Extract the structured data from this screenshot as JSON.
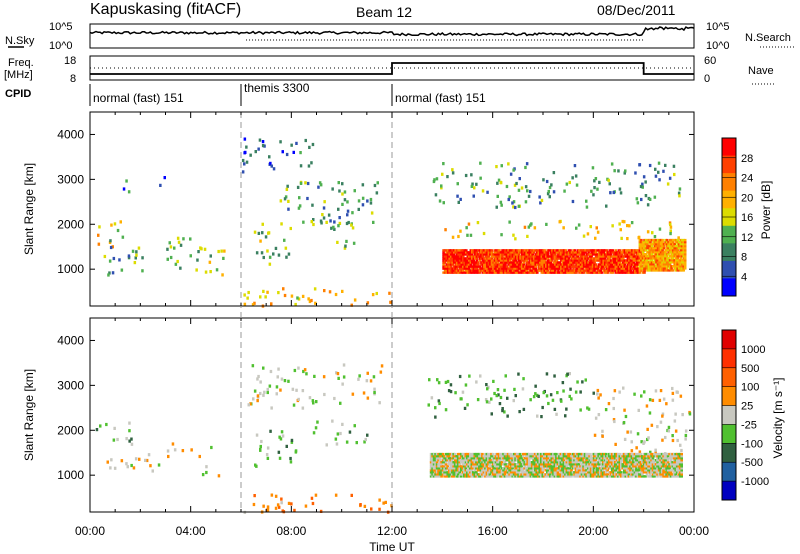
{
  "header": {
    "station": "Kapuskasing (fitACF)",
    "beam": "Beam 12",
    "date": "08/Dec/2011"
  },
  "noise_panel": {
    "left_label": "N.Sky",
    "right_label": "N.Search",
    "left_ticks": [
      "10^5",
      "10^0"
    ],
    "right_ticks": [
      "10^5",
      "10^0"
    ]
  },
  "freq_panel": {
    "left_label_1": "Freq.",
    "left_label_2": "[MHz]",
    "left_ticks": [
      "18",
      "8"
    ],
    "right_label": "Nave",
    "right_ticks": [
      "60",
      "0"
    ]
  },
  "cpid": {
    "label": "CPID",
    "segments": [
      {
        "name": "normal (fast) 151",
        "start_h": 0,
        "end_h": 6
      },
      {
        "name": "themis 3300",
        "start_h": 6,
        "end_h": 12
      },
      {
        "name": "normal (fast) 151",
        "start_h": 12,
        "end_h": 24
      }
    ]
  },
  "power_panel": {
    "ylabel": "Slant Range [km]",
    "yticks": [
      "4000",
      "3000",
      "2000",
      "1000"
    ],
    "colorbar_label": "Power [dB]",
    "colorbar_ticks": [
      "28",
      "24",
      "20",
      "16",
      "12",
      "8",
      "4"
    ],
    "colors": [
      "#0000ff",
      "#2f4fb0",
      "#3a8060",
      "#4fb050",
      "#dcdc00",
      "#ffb000",
      "#ff8000",
      "#ff4000",
      "#ff0000"
    ]
  },
  "velocity_panel": {
    "ylabel": "Slant Range [km]",
    "yticks": [
      "4000",
      "3000",
      "2000",
      "1000"
    ],
    "colorbar_label": "Velocity [m s⁻¹]",
    "colorbar_ticks": [
      "1000",
      "500",
      "100",
      "25",
      "-25",
      "-100",
      "-500",
      "-1000"
    ],
    "colors": [
      "#0000c0",
      "#2060a0",
      "#306040",
      "#50c030",
      "#c8c8c0",
      "#ff8c00",
      "#ff6000",
      "#ff3000",
      "#e00000"
    ]
  },
  "x_axis": {
    "ticks": [
      "00:00",
      "04:00",
      "08:00",
      "12:00",
      "16:00",
      "20:00",
      "00:00"
    ],
    "label": "Time UT"
  },
  "chart_data": [
    {
      "type": "heatmap",
      "title": "Power",
      "xlabel": "Time UT",
      "ylabel": "Slant Range [km]",
      "xlim": [
        0,
        24
      ],
      "ylim": [
        180,
        4500
      ],
      "color_range": [
        0,
        30
      ],
      "scatter_regions": [
        {
          "t": [
            0.1,
            1.8
          ],
          "r": [
            1500,
            2100
          ],
          "v": 16
        },
        {
          "t": [
            0.4,
            2.1
          ],
          "r": [
            900,
            1700
          ],
          "v": 10
        },
        {
          "t": [
            1.2,
            1.6
          ],
          "r": [
            2600,
            3100
          ],
          "v": 8
        },
        {
          "t": [
            2.7,
            3.0
          ],
          "r": [
            2900,
            3200
          ],
          "v": 6
        },
        {
          "t": [
            3.0,
            4.6
          ],
          "r": [
            1000,
            1800
          ],
          "v": 12
        },
        {
          "t": [
            4.2,
            5.3
          ],
          "r": [
            900,
            1500
          ],
          "v": 14
        },
        {
          "t": [
            6.0,
            9.0
          ],
          "r": [
            3200,
            4000
          ],
          "v": 6
        },
        {
          "t": [
            6.3,
            8.0
          ],
          "r": [
            1100,
            2100
          ],
          "v": 12
        },
        {
          "t": [
            7.5,
            11.5
          ],
          "r": [
            2000,
            3000
          ],
          "v": 10
        },
        {
          "t": [
            8.7,
            10.5
          ],
          "r": [
            1400,
            2200
          ],
          "v": 12
        },
        {
          "t": [
            6.0,
            12.0
          ],
          "r": [
            200,
            600
          ],
          "v": 18
        },
        {
          "t": [
            13.5,
            23.5
          ],
          "r": [
            2400,
            3400
          ],
          "v": 10
        },
        {
          "t": [
            13.5,
            23.5
          ],
          "r": [
            1700,
            2100
          ],
          "v": 16
        }
      ],
      "bands": [
        {
          "t": [
            14.0,
            22.0
          ],
          "r": [
            950,
            1450
          ],
          "v": 26
        },
        {
          "t": [
            21.8,
            23.6
          ],
          "r": [
            1000,
            1700
          ],
          "v": 20
        }
      ]
    },
    {
      "type": "heatmap",
      "title": "Velocity",
      "xlabel": "Time UT",
      "ylabel": "Slant Range [km]",
      "xlim": [
        0,
        24
      ],
      "ylim": [
        180,
        4500
      ],
      "color_range": [
        -1000,
        1000
      ],
      "scatter_regions": [
        {
          "t": [
            0.2,
            1.8
          ],
          "r": [
            1700,
            2200
          ],
          "v": -200
        },
        {
          "t": [
            0.5,
            3.0
          ],
          "r": [
            1100,
            1500
          ],
          "v": 0
        },
        {
          "t": [
            3.0,
            4.8
          ],
          "r": [
            1400,
            1800
          ],
          "v": 50
        },
        {
          "t": [
            4.2,
            5.4
          ],
          "r": [
            1000,
            1300
          ],
          "v": -50
        },
        {
          "t": [
            6.2,
            11.8
          ],
          "r": [
            2500,
            3500
          ],
          "v": 0
        },
        {
          "t": [
            6.5,
            8.2
          ],
          "r": [
            1200,
            2100
          ],
          "v": -200
        },
        {
          "t": [
            8.8,
            11.0
          ],
          "r": [
            1700,
            2300
          ],
          "v": -200
        },
        {
          "t": [
            6.0,
            12.0
          ],
          "r": [
            200,
            600
          ],
          "v": 300
        },
        {
          "t": [
            13.4,
            20.0
          ],
          "r": [
            2300,
            3300
          ],
          "v": -300
        },
        {
          "t": [
            20.0,
            23.8
          ],
          "r": [
            1500,
            3000
          ],
          "v": 50
        }
      ],
      "bands": [
        {
          "t": [
            13.5,
            23.5
          ],
          "r": [
            1000,
            1500
          ],
          "v": 0
        }
      ]
    }
  ]
}
